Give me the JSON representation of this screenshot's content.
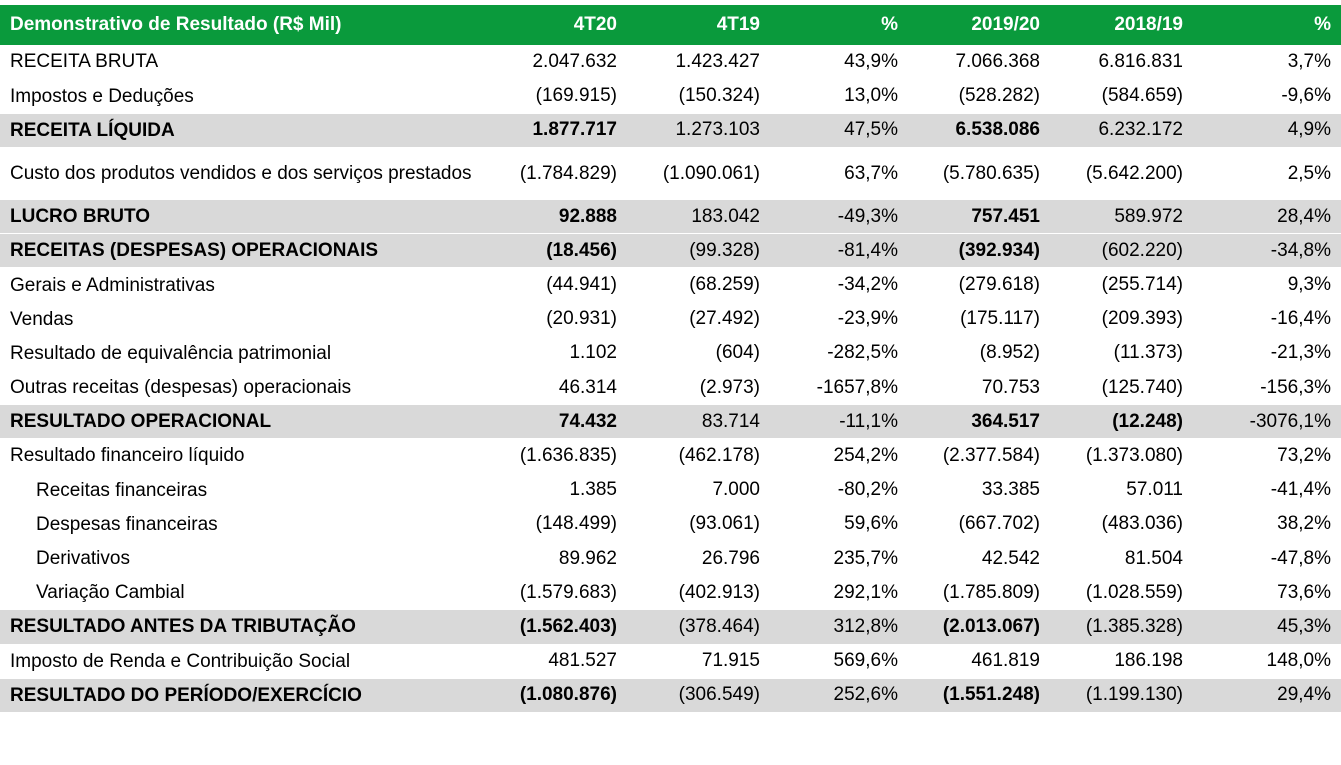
{
  "header": [
    "Demonstrativo de Resultado (R$ Mil)",
    "4T20",
    "4T19",
    "%",
    "2019/20",
    "2018/19",
    "%"
  ],
  "rows": [
    {
      "label": "RECEITA BRUTA",
      "values": [
        "2.047.632",
        "1.423.427",
        "43,9%",
        "7.066.368",
        "6.816.831",
        "3,7%"
      ]
    },
    {
      "label": "Impostos e Deduções",
      "values": [
        "(169.915)",
        "(150.324)",
        "13,0%",
        "(528.282)",
        "(584.659)",
        "-9,6%"
      ]
    },
    {
      "label": "RECEITA LÍQUIDA",
      "values": [
        "1.877.717",
        "1.273.103",
        "47,5%",
        "6.538.086",
        "6.232.172",
        "4,9%"
      ]
    },
    {
      "label": "Custo dos produtos vendidos e dos serviços prestados",
      "values": [
        "(1.784.829)",
        "(1.090.061)",
        "63,7%",
        "(5.780.635)",
        "(5.642.200)",
        "2,5%"
      ]
    },
    {
      "label": "LUCRO BRUTO",
      "values": [
        "92.888",
        "183.042",
        "-49,3%",
        "757.451",
        "589.972",
        "28,4%"
      ]
    },
    {
      "label": "RECEITAS (DESPESAS) OPERACIONAIS",
      "values": [
        "(18.456)",
        "(99.328)",
        "-81,4%",
        "(392.934)",
        "(602.220)",
        "-34,8%"
      ]
    },
    {
      "label": "Gerais e Administrativas",
      "values": [
        "(44.941)",
        "(68.259)",
        "-34,2%",
        "(279.618)",
        "(255.714)",
        "9,3%"
      ]
    },
    {
      "label": "Vendas",
      "values": [
        "(20.931)",
        "(27.492)",
        "-23,9%",
        "(175.117)",
        "(209.393)",
        "-16,4%"
      ]
    },
    {
      "label": "Resultado de equivalência patrimonial",
      "values": [
        "1.102",
        "(604)",
        "-282,5%",
        "(8.952)",
        "(11.373)",
        "-21,3%"
      ]
    },
    {
      "label": "Outras receitas (despesas) operacionais",
      "values": [
        "46.314",
        "(2.973)",
        "-1657,8%",
        "70.753",
        "(125.740)",
        "-156,3%"
      ]
    },
    {
      "label": "RESULTADO OPERACIONAL",
      "values": [
        "74.432",
        "83.714",
        "-11,1%",
        "364.517",
        "(12.248)",
        "-3076,1%"
      ]
    },
    {
      "label": "Resultado financeiro líquido",
      "values": [
        "(1.636.835)",
        "(462.178)",
        "254,2%",
        "(2.377.584)",
        "(1.373.080)",
        "73,2%"
      ]
    },
    {
      "label": "Receitas financeiras",
      "values": [
        "1.385",
        "7.000",
        "-80,2%",
        "33.385",
        "57.011",
        "-41,4%"
      ]
    },
    {
      "label": "Despesas financeiras",
      "values": [
        "(148.499)",
        "(93.061)",
        "59,6%",
        "(667.702)",
        "(483.036)",
        "38,2%"
      ]
    },
    {
      "label": "Derivativos",
      "values": [
        "89.962",
        "26.796",
        "235,7%",
        "42.542",
        "81.504",
        "-47,8%"
      ]
    },
    {
      "label": "Variação Cambial",
      "values": [
        "(1.579.683)",
        "(402.913)",
        "292,1%",
        "(1.785.809)",
        "(1.028.559)",
        "73,6%"
      ]
    },
    {
      "label": "RESULTADO ANTES DA TRIBUTAÇÃO",
      "values": [
        "(1.562.403)",
        "(378.464)",
        "312,8%",
        "(2.013.067)",
        "(1.385.328)",
        "45,3%"
      ]
    },
    {
      "label": "Imposto de Renda e Contribuição Social",
      "values": [
        "481.527",
        "71.915",
        "569,6%",
        "461.819",
        "186.198",
        "148,0%"
      ]
    },
    {
      "label": "RESULTADO DO PERÍODO/EXERCÍCIO",
      "values": [
        "(1.080.876)",
        "(306.549)",
        "252,6%",
        "(1.551.248)",
        "(1.199.130)",
        "29,4%"
      ]
    }
  ],
  "colors": {
    "header_bg": "#0a9a3c",
    "highlight_bg": "#d9d9d9",
    "divider": "#1fa04a"
  }
}
